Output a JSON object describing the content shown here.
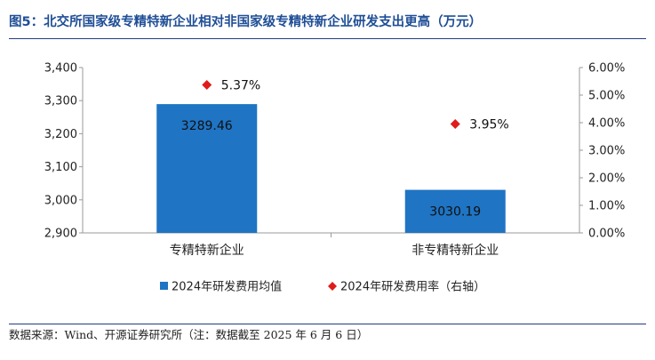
{
  "header": {
    "title": "图5：北交所国家级专精特新企业相对非国家级专精特新企业研发支出更高（万元）"
  },
  "footer": {
    "source": "数据来源：Wind、开源证券研究所（注：数据截至 2025 年 6 月 6 日）"
  },
  "chart_data": {
    "type": "bar",
    "categories": [
      "专精特新企业",
      "非专精特新企业"
    ],
    "series": [
      {
        "name": "2024年研发费用均值",
        "type": "bar",
        "axis": "left",
        "values": [
          3289.46,
          3030.19
        ],
        "data_labels": [
          "3289.46",
          "3030.19"
        ],
        "color": "#1f74c4"
      },
      {
        "name": "2024年研发费用率（右轴）",
        "type": "scatter",
        "axis": "right",
        "values": [
          5.37,
          3.95
        ],
        "data_labels": [
          "5.37%",
          "3.95%"
        ],
        "color": "#e01b1b",
        "marker": "diamond"
      }
    ],
    "y_left": {
      "ylim": [
        2900,
        3400
      ],
      "ticks": [
        2900,
        3000,
        3100,
        3200,
        3300,
        3400
      ],
      "tick_labels": [
        "2,900",
        "3,000",
        "3,100",
        "3,200",
        "3,300",
        "3,400"
      ]
    },
    "y_right": {
      "ylim": [
        0,
        6
      ],
      "ticks": [
        0,
        1,
        2,
        3,
        4,
        5,
        6
      ],
      "tick_labels": [
        "0.00%",
        "1.00%",
        "2.00%",
        "3.00%",
        "4.00%",
        "5.00%",
        "6.00%"
      ]
    },
    "legend_position": "bottom",
    "grid": false
  }
}
